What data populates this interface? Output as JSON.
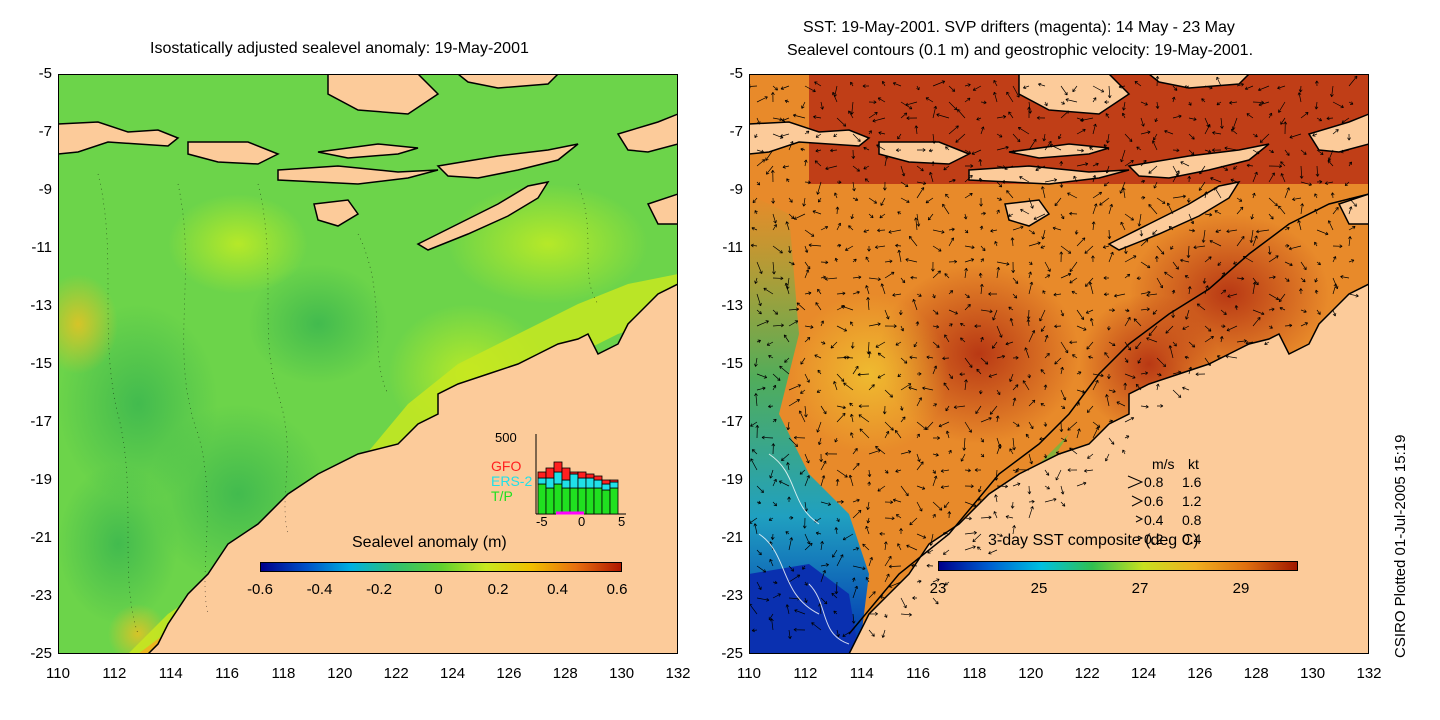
{
  "left": {
    "title": "Isostatically adjusted sealevel anomaly: 19-May-2001",
    "colorbar": {
      "label": "Sealevel anomaly (m)",
      "ticks": [
        "-0.6",
        "-0.4",
        "-0.2",
        "0",
        "0.2",
        "0.4",
        "0.6"
      ],
      "stops": [
        "#00008b",
        "#0050c8",
        "#00b0e0",
        "#30c070",
        "#60d030",
        "#c8e820",
        "#f0c000",
        "#e87010",
        "#b01800"
      ]
    },
    "inset": {
      "y_max_label": "500",
      "x_ticks": [
        "-5",
        "0",
        "5"
      ],
      "legend": [
        {
          "label": "GFO",
          "color": "#ff2020"
        },
        {
          "label": "ERS-2",
          "color": "#20e0e8"
        },
        {
          "label": "T/P",
          "color": "#20e020"
        }
      ]
    }
  },
  "right": {
    "title_line1": "SST: 19-May-2001. SVP drifters (magenta): 14 May - 23 May",
    "title_line2": "Sealevel contours (0.1 m) and geostrophic velocity: 19-May-2001.",
    "colorbar": {
      "label": "3-day SST composite (deg C)",
      "ticks": [
        "23",
        "25",
        "27",
        "29"
      ],
      "stops": [
        "#00008b",
        "#0060d0",
        "#00c0e0",
        "#30c050",
        "#c8e020",
        "#f0b020",
        "#e07010",
        "#a01800"
      ]
    },
    "velocity_legend": {
      "header_ms": "m/s",
      "header_kt": "kt",
      "rows": [
        {
          "ms": "0.8",
          "kt": "1.6"
        },
        {
          "ms": "0.6",
          "kt": "1.2"
        },
        {
          "ms": "0.4",
          "kt": "0.8"
        },
        {
          "ms": "0.2",
          "kt": "0.4"
        }
      ]
    }
  },
  "axes": {
    "y_ticks": [
      "-5",
      "-7",
      "-9",
      "-11",
      "-13",
      "-15",
      "-17",
      "-19",
      "-21",
      "-23",
      "-25"
    ],
    "x_ticks": [
      "110",
      "112",
      "114",
      "116",
      "118",
      "120",
      "122",
      "124",
      "126",
      "128",
      "130",
      "132"
    ]
  },
  "side_note": "CSIRO Plotted 01-Jul-2005 15:19",
  "colors": {
    "land": "#fccb9a",
    "coast": "#000000",
    "left_sea_main": "#6cd44a",
    "right_sea_main": "#e88a2a"
  }
}
